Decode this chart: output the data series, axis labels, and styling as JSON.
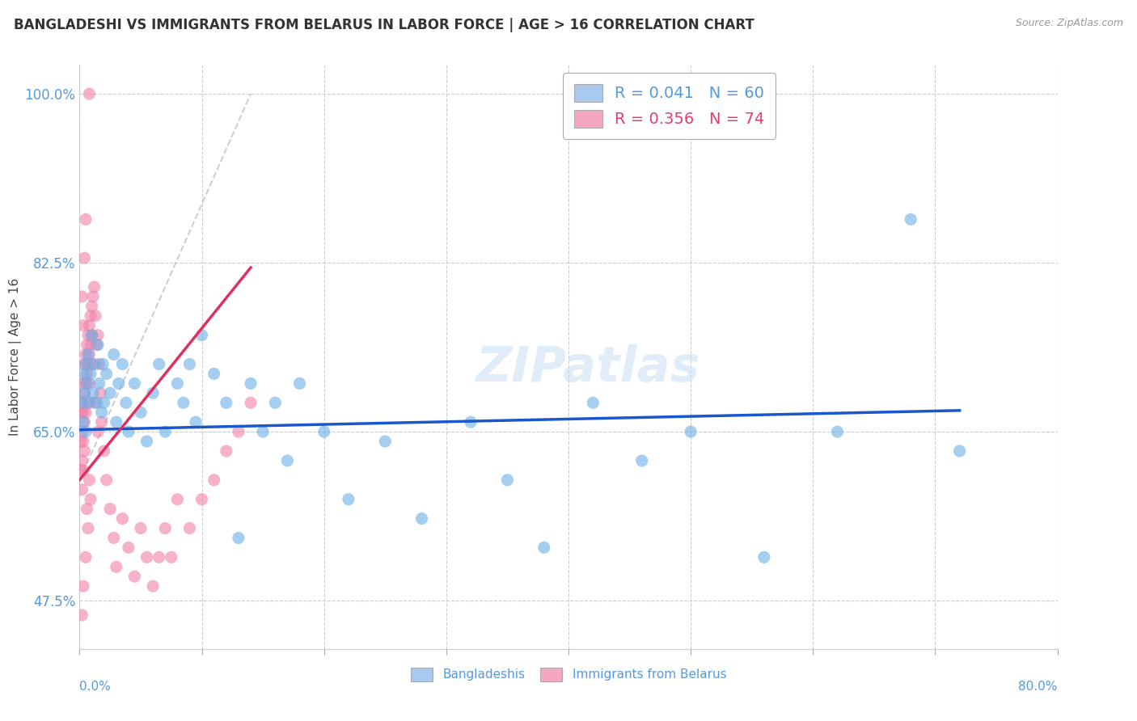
{
  "title": "BANGLADESHI VS IMMIGRANTS FROM BELARUS IN LABOR FORCE | AGE > 16 CORRELATION CHART",
  "source": "Source: ZipAtlas.com",
  "ylabel": "In Labor Force | Age > 16",
  "ytick_labels": [
    "47.5%",
    "65.0%",
    "82.5%",
    "100.0%"
  ],
  "ytick_values": [
    0.475,
    0.65,
    0.825,
    1.0
  ],
  "legend_entry1": "R = 0.041   N = 60",
  "legend_entry2": "R = 0.356   N = 74",
  "legend_color1": "#a8c8f0",
  "legend_color2": "#f4a8c0",
  "blue_color": "#6aaee8",
  "pink_color": "#f080a8",
  "trend_blue": "#1a56cc",
  "trend_pink": "#e03060",
  "blue_scatter_x": [
    0.002,
    0.003,
    0.003,
    0.004,
    0.005,
    0.005,
    0.006,
    0.007,
    0.008,
    0.009,
    0.01,
    0.011,
    0.012,
    0.014,
    0.015,
    0.016,
    0.018,
    0.019,
    0.02,
    0.022,
    0.025,
    0.028,
    0.03,
    0.032,
    0.035,
    0.038,
    0.04,
    0.045,
    0.05,
    0.055,
    0.06,
    0.065,
    0.07,
    0.08,
    0.085,
    0.09,
    0.095,
    0.1,
    0.11,
    0.12,
    0.13,
    0.14,
    0.15,
    0.16,
    0.17,
    0.18,
    0.2,
    0.22,
    0.25,
    0.28,
    0.32,
    0.35,
    0.38,
    0.42,
    0.46,
    0.5,
    0.56,
    0.62,
    0.68,
    0.72
  ],
  "blue_scatter_y": [
    0.68,
    0.71,
    0.66,
    0.69,
    0.72,
    0.65,
    0.7,
    0.73,
    0.68,
    0.71,
    0.75,
    0.69,
    0.72,
    0.68,
    0.74,
    0.7,
    0.67,
    0.72,
    0.68,
    0.71,
    0.69,
    0.73,
    0.66,
    0.7,
    0.72,
    0.68,
    0.65,
    0.7,
    0.67,
    0.64,
    0.69,
    0.72,
    0.65,
    0.7,
    0.68,
    0.72,
    0.66,
    0.75,
    0.71,
    0.68,
    0.54,
    0.7,
    0.65,
    0.68,
    0.62,
    0.7,
    0.65,
    0.58,
    0.64,
    0.56,
    0.66,
    0.6,
    0.53,
    0.68,
    0.62,
    0.65,
    0.52,
    0.65,
    0.87,
    0.63
  ],
  "pink_scatter_x": [
    0.001,
    0.001,
    0.001,
    0.002,
    0.002,
    0.002,
    0.002,
    0.003,
    0.003,
    0.003,
    0.003,
    0.004,
    0.004,
    0.004,
    0.005,
    0.005,
    0.005,
    0.006,
    0.006,
    0.006,
    0.007,
    0.007,
    0.008,
    0.008,
    0.008,
    0.009,
    0.009,
    0.01,
    0.01,
    0.011,
    0.012,
    0.013,
    0.014,
    0.015,
    0.016,
    0.017,
    0.018,
    0.02,
    0.022,
    0.025,
    0.028,
    0.03,
    0.035,
    0.04,
    0.045,
    0.05,
    0.055,
    0.06,
    0.065,
    0.07,
    0.075,
    0.08,
    0.09,
    0.1,
    0.11,
    0.12,
    0.13,
    0.14,
    0.009,
    0.007,
    0.005,
    0.003,
    0.002,
    0.004,
    0.006,
    0.008,
    0.01,
    0.012,
    0.015,
    0.002,
    0.003,
    0.004,
    0.005,
    0.008
  ],
  "pink_scatter_y": [
    0.67,
    0.64,
    0.61,
    0.68,
    0.65,
    0.62,
    0.59,
    0.7,
    0.67,
    0.64,
    0.61,
    0.72,
    0.69,
    0.66,
    0.73,
    0.7,
    0.67,
    0.74,
    0.71,
    0.68,
    0.75,
    0.72,
    0.76,
    0.73,
    0.7,
    0.77,
    0.74,
    0.78,
    0.75,
    0.79,
    0.8,
    0.77,
    0.74,
    0.75,
    0.72,
    0.69,
    0.66,
    0.63,
    0.6,
    0.57,
    0.54,
    0.51,
    0.56,
    0.53,
    0.5,
    0.55,
    0.52,
    0.49,
    0.52,
    0.55,
    0.52,
    0.58,
    0.55,
    0.58,
    0.6,
    0.63,
    0.65,
    0.68,
    0.58,
    0.55,
    0.52,
    0.49,
    0.46,
    0.63,
    0.57,
    0.6,
    0.72,
    0.68,
    0.65,
    0.79,
    0.76,
    0.83,
    0.87,
    1.0
  ],
  "blue_trend_x": [
    0.0,
    0.72
  ],
  "blue_trend_y": [
    0.652,
    0.672
  ],
  "pink_trend_x": [
    0.0,
    0.14
  ],
  "pink_trend_y": [
    0.6,
    0.82
  ],
  "dashed_line_x": [
    0.0,
    0.14
  ],
  "dashed_line_y": [
    0.6,
    1.0
  ],
  "xlim": [
    0.0,
    0.8
  ],
  "ylim": [
    0.425,
    1.03
  ],
  "figsize": [
    14.06,
    8.92
  ],
  "dpi": 100
}
